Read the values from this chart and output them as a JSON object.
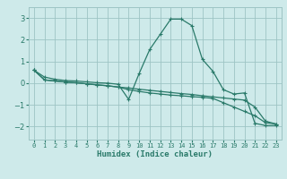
{
  "xlabel": "Humidex (Indice chaleur)",
  "bg_color": "#ceeaea",
  "grid_color": "#9dc4c4",
  "line_color": "#2a7a6a",
  "xlim": [
    -0.5,
    23.5
  ],
  "ylim": [
    -2.6,
    3.5
  ],
  "x": [
    0,
    1,
    2,
    3,
    4,
    5,
    6,
    7,
    8,
    9,
    10,
    11,
    12,
    13,
    14,
    15,
    16,
    17,
    18,
    19,
    20,
    21,
    22,
    23
  ],
  "line1": [
    0.6,
    0.28,
    0.18,
    0.12,
    0.1,
    0.06,
    0.02,
    0.0,
    -0.05,
    -0.75,
    0.45,
    1.55,
    2.25,
    2.95,
    2.95,
    2.65,
    1.1,
    0.55,
    -0.3,
    -0.5,
    -0.45,
    -1.85,
    -1.95,
    -1.95
  ],
  "line2": [
    0.6,
    0.15,
    0.1,
    0.05,
    0.02,
    -0.03,
    -0.08,
    -0.12,
    -0.18,
    -0.22,
    -0.28,
    -0.33,
    -0.38,
    -0.43,
    -0.48,
    -0.52,
    -0.58,
    -0.63,
    -0.68,
    -0.73,
    -0.78,
    -1.1,
    -1.75,
    -1.88
  ],
  "line3": [
    0.6,
    0.15,
    0.1,
    0.05,
    0.02,
    -0.03,
    -0.08,
    -0.12,
    -0.18,
    -0.3,
    -0.38,
    -0.45,
    -0.5,
    -0.55,
    -0.58,
    -0.62,
    -0.65,
    -0.7,
    -0.9,
    -1.1,
    -1.3,
    -1.5,
    -1.82,
    -1.88
  ],
  "yticks": [
    -2,
    -1,
    0,
    1,
    2,
    3
  ],
  "xticks": [
    0,
    1,
    2,
    3,
    4,
    5,
    6,
    7,
    8,
    9,
    10,
    11,
    12,
    13,
    14,
    15,
    16,
    17,
    18,
    19,
    20,
    21,
    22,
    23
  ]
}
